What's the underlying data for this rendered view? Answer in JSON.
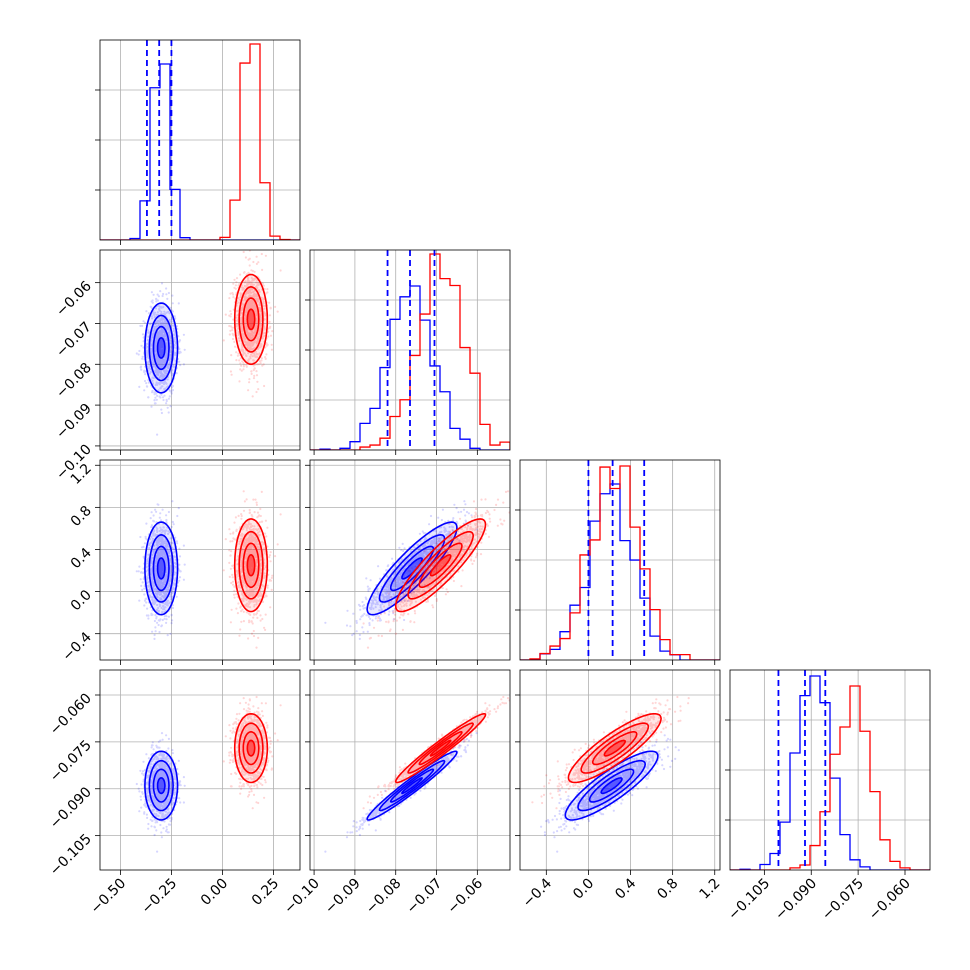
{
  "chart_data": {
    "type": "corner",
    "colors": {
      "blue": "#0000ff",
      "red": "#ff0000",
      "grid": "#b0b0b0"
    },
    "series": [
      {
        "color": "#0000ff",
        "mean": [
          -0.3,
          -0.076,
          0.22,
          -0.089
        ],
        "std": [
          0.04,
          0.0055,
          0.22,
          0.0055
        ]
      },
      {
        "color": "#ff0000",
        "mean": [
          0.14,
          -0.069,
          0.25,
          -0.077
        ],
        "std": [
          0.04,
          0.0055,
          0.22,
          0.0055
        ]
      }
    ],
    "correlations": [
      [
        1.0,
        0.0,
        0.0,
        0.0
      ],
      [
        0.0,
        1.0,
        0.88,
        0.97
      ],
      [
        0.0,
        0.88,
        1.0,
        0.86
      ],
      [
        0.0,
        0.97,
        0.86,
        1.0
      ]
    ],
    "ranges": [
      [
        -0.6,
        0.38
      ],
      [
        -0.101,
        -0.052
      ],
      [
        -0.65,
        1.25
      ],
      [
        -0.116,
        -0.052
      ]
    ],
    "ticks": [
      {
        "values": [
          -0.5,
          -0.25,
          0.0,
          0.25
        ],
        "labels": [
          "−0.50",
          "−0.25",
          "0.00",
          "0.25"
        ]
      },
      {
        "values": [
          -0.1,
          -0.09,
          -0.08,
          -0.07,
          -0.06
        ],
        "labels": [
          "−0.10",
          "−0.09",
          "−0.08",
          "−0.07",
          "−0.06"
        ]
      },
      {
        "values": [
          -0.4,
          0.0,
          0.4,
          0.8,
          1.2
        ],
        "labels": [
          "−0.4",
          "0.0",
          "0.4",
          "0.8",
          "1.2"
        ]
      },
      {
        "values": [
          -0.105,
          -0.09,
          -0.075,
          -0.06
        ],
        "labels": [
          "−0.105",
          "−0.090",
          "−0.075",
          "−0.060"
        ]
      }
    ],
    "quantiles": [
      [
        -0.37,
        -0.31,
        -0.25
      ],
      [
        -0.082,
        -0.0765,
        -0.0705
      ],
      [
        0.0,
        0.23,
        0.53
      ],
      [
        -0.1005,
        -0.092,
        -0.0855
      ]
    ],
    "histograms": [
      {
        "bins": 20,
        "blue_peak": 0.88,
        "red_peak": 0.98
      },
      {
        "bins": 20,
        "blue_peak": 0.82,
        "red_peak": 0.98
      },
      {
        "bins": 20,
        "blue_peak": 0.88,
        "red_peak": 0.97
      },
      {
        "bins": 20,
        "blue_peak": 0.97,
        "red_peak": 0.92
      }
    ],
    "grid": true,
    "legend": "none"
  }
}
